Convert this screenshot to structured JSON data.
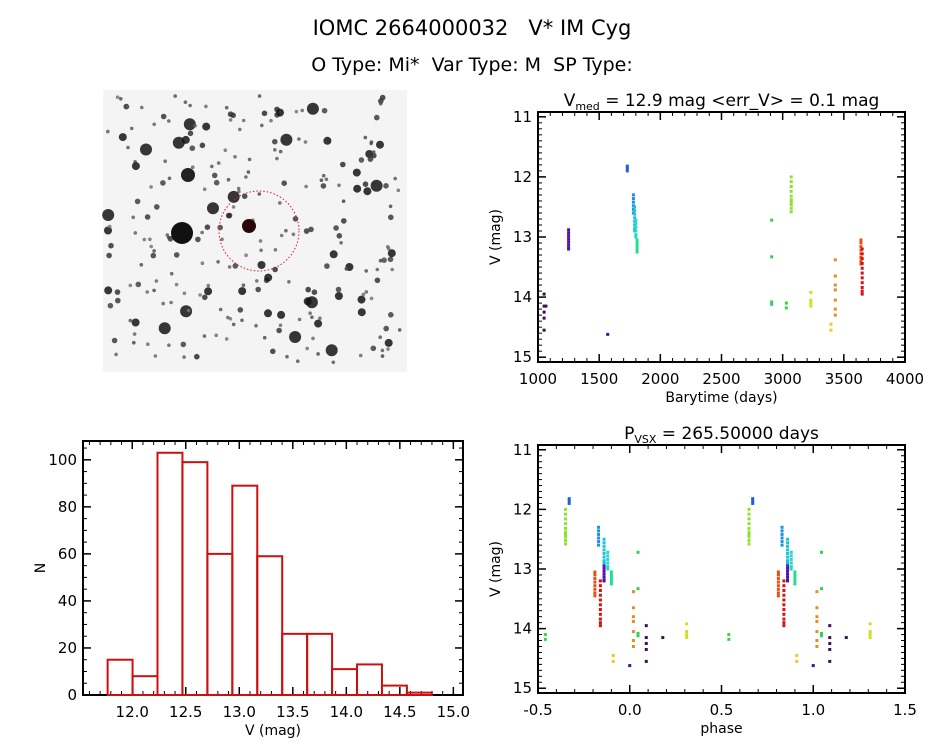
{
  "header": {
    "title": "IOMC 2664000032   V* IM Cyg",
    "subtitle": "O Type: Mi*  Var Type: M  SP Type:"
  },
  "finder_image": {
    "type": "grayscale star field",
    "marker_color": "#d02020"
  },
  "chart_data": [
    {
      "id": "lightcurve",
      "type": "scatter",
      "title_main": "V",
      "title_sub": "med",
      "title_rest": " = 12.9 mag <err_V> = 0.1 mag",
      "xlabel": "Barytime (days)",
      "ylabel": "V (mag)",
      "xlim": [
        1000,
        4000
      ],
      "ylim": [
        15.08,
        10.92
      ],
      "y_inverted": true,
      "xticks": [
        1000,
        1500,
        2000,
        2500,
        3000,
        3500,
        4000
      ],
      "yticks": [
        11,
        12,
        13,
        14,
        15
      ]
    },
    {
      "id": "histogram",
      "type": "bar",
      "xlabel": "V (mag)",
      "ylabel": "N",
      "xlim": [
        11.54,
        15.09
      ],
      "ylim": [
        0,
        108
      ],
      "xticks": [
        12.0,
        12.5,
        13.0,
        13.5,
        14.0,
        14.5,
        15.0
      ],
      "yticks": [
        0,
        20,
        40,
        60,
        80,
        100
      ],
      "bin_start": 11.77,
      "bin_width": 0.233,
      "values": [
        15,
        8,
        103,
        99,
        60,
        89,
        59,
        26,
        26,
        11,
        13,
        4,
        1
      ],
      "color": "#cc1010"
    },
    {
      "id": "phased",
      "type": "scatter",
      "title_main": "P",
      "title_sub": "VSX",
      "title_rest": " = 265.50000 days",
      "xlabel": "phase",
      "ylabel": "V (mag)",
      "xlim": [
        -0.5,
        1.5
      ],
      "ylim": [
        15.08,
        10.92
      ],
      "y_inverted": true,
      "phase_repeat": 1,
      "xticks": [
        -0.5,
        0.0,
        0.5,
        1.0,
        1.5
      ],
      "yticks": [
        11,
        12,
        13,
        14,
        15
      ]
    }
  ],
  "observations": [
    {
      "color": "#3a1050",
      "time": 1050,
      "phase": 0.09,
      "mags": [
        13.95,
        14.15,
        14.25,
        14.35,
        14.55
      ]
    },
    {
      "color": "#3a1050",
      "time": 1065,
      "phase": 0.18,
      "mags": [
        14.15
      ]
    },
    {
      "color": "#5010b0",
      "time": 1250,
      "phase": -0.14,
      "mags": [
        12.88,
        12.93,
        12.98,
        13.03,
        13.08,
        13.13,
        13.18,
        13.2
      ]
    },
    {
      "color": "#202090",
      "time": 1570,
      "phase": 0.0,
      "mags": [
        14.62
      ]
    },
    {
      "color": "#2060d0",
      "time": 1730,
      "phase": -0.33,
      "mags": [
        11.82,
        11.86,
        11.9
      ]
    },
    {
      "color": "#2090e0",
      "time": 1780,
      "phase": -0.17,
      "mags": [
        12.3,
        12.36,
        12.42,
        12.48,
        12.54,
        12.6
      ]
    },
    {
      "color": "#20c0e0",
      "time": 1790,
      "phase": -0.14,
      "mags": [
        12.5,
        12.56,
        12.62,
        12.68,
        12.74,
        12.8,
        12.86,
        12.9
      ]
    },
    {
      "color": "#20d8c8",
      "time": 1800,
      "phase": -0.12,
      "mags": [
        12.72,
        12.78,
        12.84,
        12.9,
        12.96,
        13.0
      ]
    },
    {
      "color": "#20e090",
      "time": 1810,
      "phase": -0.1,
      "mags": [
        13.05,
        13.1,
        13.15,
        13.2,
        13.25
      ]
    },
    {
      "color": "#30d060",
      "time": 2910,
      "phase": 0.045,
      "mags": [
        12.72,
        13.33,
        14.08,
        14.12
      ]
    },
    {
      "color": "#40d040",
      "time": 3030,
      "phase": -0.46,
      "mags": [
        14.1,
        14.18
      ]
    },
    {
      "color": "#90e030",
      "time": 3070,
      "phase": -0.35,
      "mags": [
        12.0,
        12.08,
        12.16,
        12.24,
        12.32,
        12.38,
        12.42,
        12.46,
        12.52,
        12.58
      ]
    },
    {
      "color": "#d0e020",
      "time": 3230,
      "phase": 0.31,
      "mags": [
        13.92,
        14.05,
        14.1,
        14.15
      ]
    },
    {
      "color": "#f0c820",
      "time": 3395,
      "phase": -0.09,
      "mags": [
        14.45,
        14.55
      ]
    },
    {
      "color": "#e09020",
      "time": 3430,
      "phase": 0.02,
      "mags": [
        13.38,
        13.65,
        13.8,
        13.88,
        14.05,
        14.2,
        14.3
      ]
    },
    {
      "color": "#e85010",
      "time": 3640,
      "phase": -0.19,
      "mags": [
        13.05,
        13.1,
        13.16,
        13.22,
        13.28,
        13.34,
        13.4,
        13.45
      ]
    },
    {
      "color": "#d81010",
      "time": 3650,
      "phase": -0.16,
      "mags": [
        13.2,
        13.28,
        13.36,
        13.44,
        13.52,
        13.6,
        13.68,
        13.76,
        13.84,
        13.9,
        13.95
      ]
    }
  ]
}
